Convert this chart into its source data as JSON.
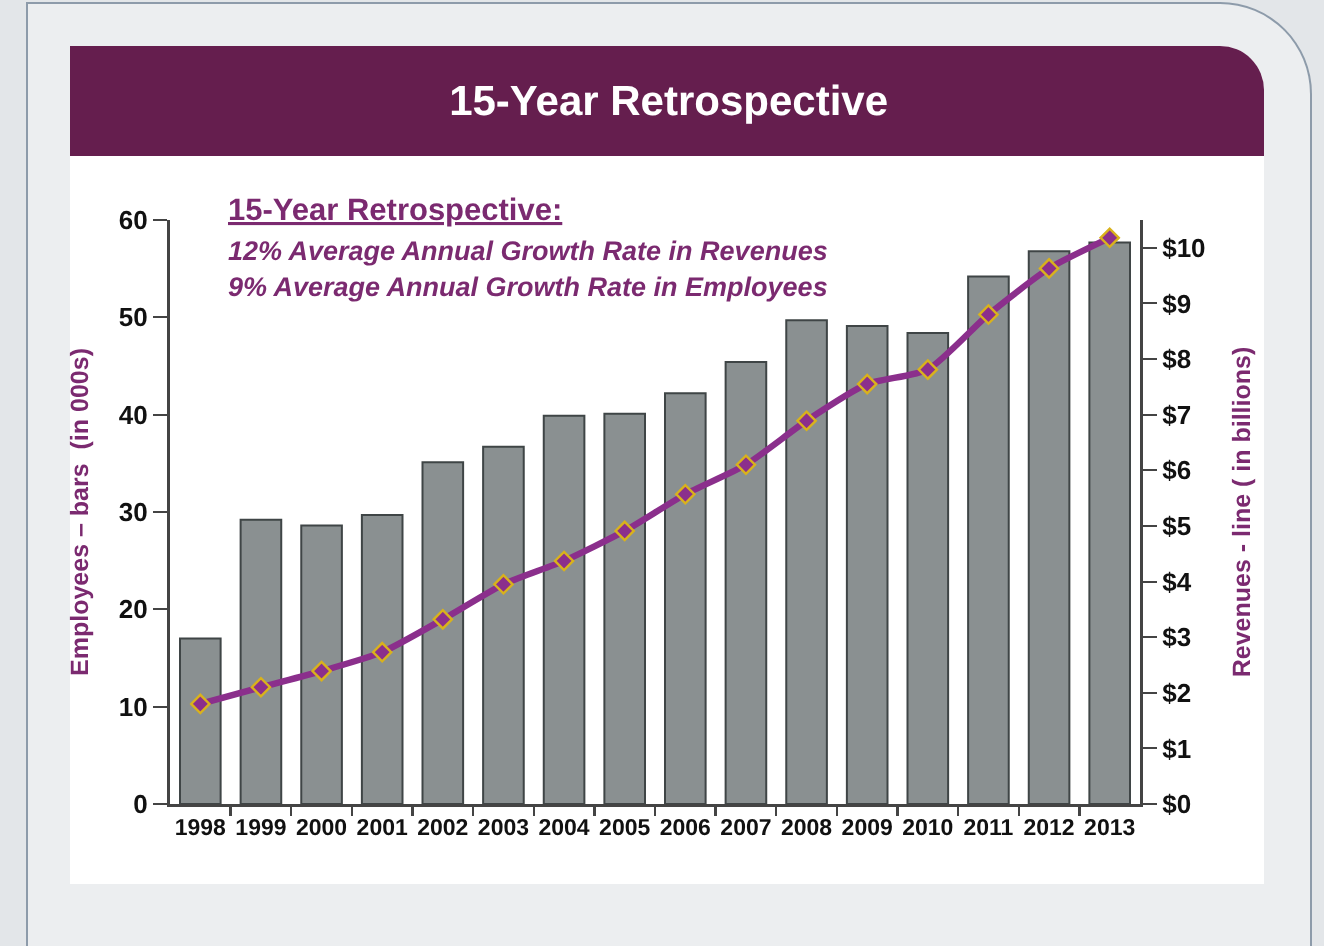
{
  "chart_data": {
    "type": "bar",
    "title": "15-Year Retrospective",
    "ylabel": "Employees – bars  (in 000s)",
    "y2label": "Revenues - line ( in billions)",
    "annotations": [
      "15-Year Retrospective:",
      "12% Average Annual Growth Rate in Revenues",
      "9% Average Annual Growth Rate in Employees"
    ],
    "categories": [
      "1998",
      "1999",
      "2000",
      "2001",
      "2002",
      "2003",
      "2004",
      "2005",
      "2006",
      "2007",
      "2008",
      "2009",
      "2010",
      "2011",
      "2012",
      "2013"
    ],
    "series": [
      {
        "color": "#8a9091",
        "values": [
          17,
          29.2,
          28.6,
          29.7,
          35.1,
          36.7,
          39.9,
          40.1,
          42.2,
          45.4,
          49.7,
          49.1,
          48.4,
          54.2,
          56.8,
          57.7
        ]
      },
      {
        "type": "line",
        "axis": "y2",
        "color": "#8b2f8c",
        "values": [
          1.8,
          2.1,
          2.39,
          2.73,
          3.32,
          3.95,
          4.37,
          4.91,
          5.57,
          6.1,
          6.89,
          7.55,
          7.81,
          8.8,
          9.63,
          10.18
        ]
      }
    ],
    "ylim": [
      0,
      60
    ],
    "yticks": [
      0,
      10,
      20,
      30,
      40,
      50,
      60
    ],
    "y2lim": [
      0,
      10.5
    ],
    "y2ticks": [
      {
        "value": 0,
        "label": "$0"
      },
      {
        "value": 1,
        "label": "$1"
      },
      {
        "value": 2,
        "label": "$2"
      },
      {
        "value": 3,
        "label": "$3"
      },
      {
        "value": 4,
        "label": "$4"
      },
      {
        "value": 5,
        "label": "$5"
      },
      {
        "value": 6,
        "label": "$6"
      },
      {
        "value": 7,
        "label": "$7"
      },
      {
        "value": 8,
        "label": "$8"
      },
      {
        "value": 9,
        "label": "$9"
      },
      {
        "value": 10,
        "label": "$10"
      }
    ],
    "grid": false,
    "marker": "diamond",
    "line_style": "solid"
  }
}
